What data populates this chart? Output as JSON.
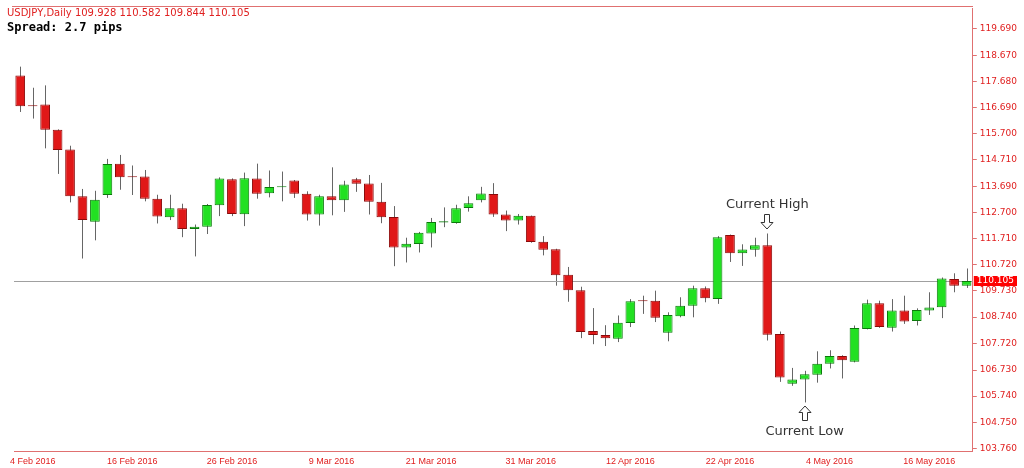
{
  "chart_data": {
    "type": "candlestick",
    "categories": [
      null,
      "4 Feb 2016",
      null,
      null,
      null,
      null,
      null,
      null,
      null,
      "16 Feb 2016",
      null,
      null,
      null,
      null,
      null,
      null,
      null,
      "26 Feb 2016",
      null,
      null,
      null,
      null,
      null,
      null,
      null,
      "9 Mar 2016",
      null,
      null,
      null,
      null,
      null,
      null,
      null,
      "21 Mar 2016",
      null,
      null,
      null,
      null,
      null,
      null,
      null,
      "31 Mar 2016",
      null,
      null,
      null,
      null,
      null,
      null,
      null,
      "12 Apr 2016",
      null,
      null,
      null,
      null,
      null,
      null,
      null,
      "22 Apr 2016",
      null,
      null,
      null,
      null,
      null,
      null,
      null,
      "4 May 2016",
      null,
      null,
      null,
      null,
      null,
      null,
      null,
      "16 May 2016",
      null,
      null,
      null
    ],
    "ohlc": [
      [
        117.9,
        118.24,
        116.52,
        116.74
      ],
      [
        116.78,
        117.44,
        116.27,
        116.74
      ],
      [
        116.8,
        117.53,
        115.14,
        115.85
      ],
      [
        115.85,
        115.86,
        114.17,
        115.08
      ],
      [
        115.1,
        115.24,
        113.09,
        113.32
      ],
      [
        113.32,
        113.6,
        110.96,
        112.42
      ],
      [
        112.36,
        113.53,
        111.65,
        113.19
      ],
      [
        113.37,
        114.74,
        113.26,
        114.55
      ],
      [
        114.56,
        114.89,
        113.57,
        114.04
      ],
      [
        114.08,
        114.49,
        113.37,
        114.04
      ],
      [
        114.07,
        114.32,
        113.13,
        113.23
      ],
      [
        113.23,
        113.38,
        112.29,
        112.55
      ],
      [
        112.53,
        113.38,
        112.42,
        112.87
      ],
      [
        112.87,
        113.04,
        111.77,
        112.08
      ],
      [
        112.08,
        112.25,
        111.04,
        112.17
      ],
      [
        112.17,
        113.03,
        111.89,
        112.99
      ],
      [
        112.98,
        114.04,
        112.57,
        114.0
      ],
      [
        113.97,
        114.0,
        112.57,
        112.65
      ],
      [
        112.64,
        114.22,
        112.19,
        114.01
      ],
      [
        114.0,
        114.56,
        113.23,
        113.42
      ],
      [
        113.44,
        114.3,
        113.28,
        113.67
      ],
      [
        113.66,
        114.26,
        113.13,
        113.7
      ],
      [
        113.92,
        113.94,
        113.26,
        113.42
      ],
      [
        113.42,
        113.51,
        112.4,
        112.63
      ],
      [
        112.63,
        113.38,
        112.21,
        113.32
      ],
      [
        113.32,
        114.42,
        112.6,
        113.17
      ],
      [
        113.17,
        113.91,
        112.73,
        113.77
      ],
      [
        113.97,
        114.02,
        113.49,
        113.8
      ],
      [
        113.81,
        114.13,
        112.63,
        113.11
      ],
      [
        113.11,
        113.83,
        112.3,
        112.53
      ],
      [
        112.54,
        112.95,
        110.67,
        111.38
      ],
      [
        111.38,
        111.75,
        110.81,
        111.52
      ],
      [
        111.51,
        111.97,
        111.19,
        111.94
      ],
      [
        111.91,
        112.5,
        111.38,
        112.35
      ],
      [
        112.33,
        112.9,
        112.15,
        112.37
      ],
      [
        112.31,
        113.0,
        112.28,
        112.87
      ],
      [
        112.88,
        113.32,
        112.74,
        113.06
      ],
      [
        113.17,
        113.68,
        113.09,
        113.43
      ],
      [
        113.41,
        113.82,
        112.54,
        112.63
      ],
      [
        112.63,
        112.78,
        112.0,
        112.4
      ],
      [
        112.4,
        112.65,
        112.25,
        112.58
      ],
      [
        112.58,
        112.59,
        111.56,
        111.59
      ],
      [
        111.6,
        111.81,
        111.08,
        111.29
      ],
      [
        111.31,
        111.33,
        109.93,
        110.33
      ],
      [
        110.34,
        110.64,
        109.32,
        109.76
      ],
      [
        109.76,
        109.89,
        107.94,
        108.17
      ],
      [
        108.21,
        109.08,
        107.71,
        108.06
      ],
      [
        108.06,
        108.43,
        107.64,
        107.94
      ],
      [
        107.92,
        108.8,
        107.79,
        108.52
      ],
      [
        108.51,
        109.42,
        108.36,
        109.34
      ],
      [
        109.36,
        109.55,
        108.86,
        109.34
      ],
      [
        109.36,
        109.74,
        108.55,
        108.71
      ],
      [
        108.14,
        108.92,
        107.82,
        108.82
      ],
      [
        108.77,
        109.49,
        108.73,
        109.17
      ],
      [
        109.17,
        109.93,
        108.73,
        109.83
      ],
      [
        109.83,
        109.9,
        109.3,
        109.45
      ],
      [
        109.42,
        111.81,
        109.24,
        111.77
      ],
      [
        111.85,
        111.87,
        110.83,
        111.16
      ],
      [
        111.16,
        111.5,
        110.68,
        111.3
      ],
      [
        111.29,
        111.75,
        111.03,
        111.46
      ],
      [
        111.46,
        111.91,
        107.85,
        108.07
      ],
      [
        108.1,
        108.19,
        106.28,
        106.45
      ],
      [
        106.21,
        106.81,
        106.13,
        106.37
      ],
      [
        106.37,
        106.7,
        105.5,
        106.57
      ],
      [
        106.55,
        107.44,
        106.25,
        106.97
      ],
      [
        106.97,
        107.48,
        106.79,
        107.26
      ],
      [
        107.26,
        107.29,
        106.41,
        107.1
      ],
      [
        107.04,
        108.42,
        107.02,
        108.32
      ],
      [
        108.29,
        109.4,
        108.27,
        109.26
      ],
      [
        109.26,
        109.36,
        108.33,
        108.36
      ],
      [
        108.33,
        109.42,
        108.19,
        108.99
      ],
      [
        108.99,
        109.55,
        108.48,
        108.57
      ],
      [
        108.59,
        109.07,
        108.42,
        109.01
      ],
      [
        108.99,
        109.68,
        108.82,
        109.1
      ],
      [
        109.11,
        110.24,
        108.7,
        110.2
      ],
      [
        110.18,
        110.4,
        109.68,
        109.93
      ],
      [
        109.928,
        110.582,
        109.844,
        110.105
      ]
    ],
    "ylim": [
      103.65,
      120.45
    ],
    "yticks": [
      {
        "value": 103.76,
        "label": "103.760"
      },
      {
        "value": 104.75,
        "label": "104.750"
      },
      {
        "value": 105.74,
        "label": "105.740"
      },
      {
        "value": 106.73,
        "label": "106.730"
      },
      {
        "value": 107.72,
        "label": "107.720"
      },
      {
        "value": 108.74,
        "label": "108.740"
      },
      {
        "value": 109.73,
        "label": "109.730"
      },
      {
        "value": 110.72,
        "label": "110.720"
      },
      {
        "value": 111.71,
        "label": "111.710"
      },
      {
        "value": 112.7,
        "label": "112.700"
      },
      {
        "value": 113.69,
        "label": "113.690"
      },
      {
        "value": 114.71,
        "label": "114.710"
      },
      {
        "value": 115.7,
        "label": "115.700"
      },
      {
        "value": 116.69,
        "label": "116.690"
      },
      {
        "value": 117.68,
        "label": "117.680"
      },
      {
        "value": 118.67,
        "label": "118.670"
      },
      {
        "value": 119.69,
        "label": "119.690"
      }
    ],
    "ref_lines": [
      {
        "axis": "y",
        "value": 110.105,
        "label": "110.105",
        "color": "#a0a0a0"
      }
    ],
    "annotations": [
      "USDJPY,Daily 109.928 110.582 109.844 110.105",
      "Spread: 2.7 pips",
      {
        "text": "Current High",
        "y": 111.91
      },
      {
        "text": "Current Low",
        "y": 105.5
      }
    ],
    "grid": false,
    "legend": false
  }
}
